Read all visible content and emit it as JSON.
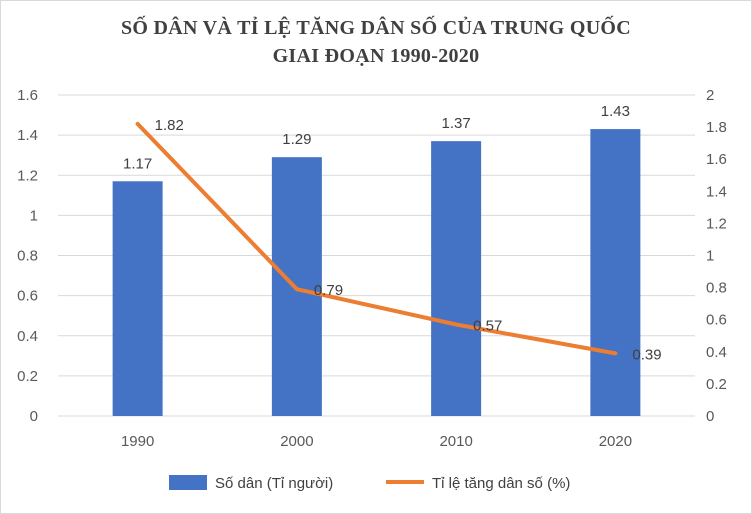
{
  "title": {
    "line1": "SỐ DÂN VÀ TỈ LỆ TĂNG DÂN SỐ CỦA TRUNG QUỐC",
    "line2": "GIAI ĐOẠN 1990-2020"
  },
  "colors": {
    "bar": "#4472c4",
    "line": "#ed7d31",
    "grid": "#d9d9d9",
    "text": "#595959"
  },
  "chart_data": {
    "type": "bar+line",
    "title": "SỐ DÂN VÀ TỈ LỆ TĂNG DÂN SỐ CỦA TRUNG QUỐC GIAI ĐOẠN 1990-2020",
    "categories": [
      "1990",
      "2000",
      "2010",
      "2020"
    ],
    "series": [
      {
        "name": "Số dân (Tỉ người)",
        "type": "bar",
        "axis": "left",
        "values": [
          1.17,
          1.29,
          1.37,
          1.43
        ]
      },
      {
        "name": "Tỉ lệ tăng dân số (%)",
        "type": "line",
        "axis": "right",
        "values": [
          1.82,
          0.79,
          0.57,
          0.39
        ]
      }
    ],
    "y_left": {
      "min": 0,
      "max": 1.6,
      "ticks": [
        "0",
        "0.2",
        "0.4",
        "0.6",
        "0.8",
        "1",
        "1.2",
        "1.4",
        "1.6"
      ]
    },
    "y_right": {
      "min": 0,
      "max": 2,
      "ticks": [
        "0",
        "0.2",
        "0.4",
        "0.6",
        "0.8",
        "1",
        "1.2",
        "1.4",
        "1.6",
        "1.8",
        "2"
      ]
    },
    "grid": true,
    "legend": "bottom"
  }
}
